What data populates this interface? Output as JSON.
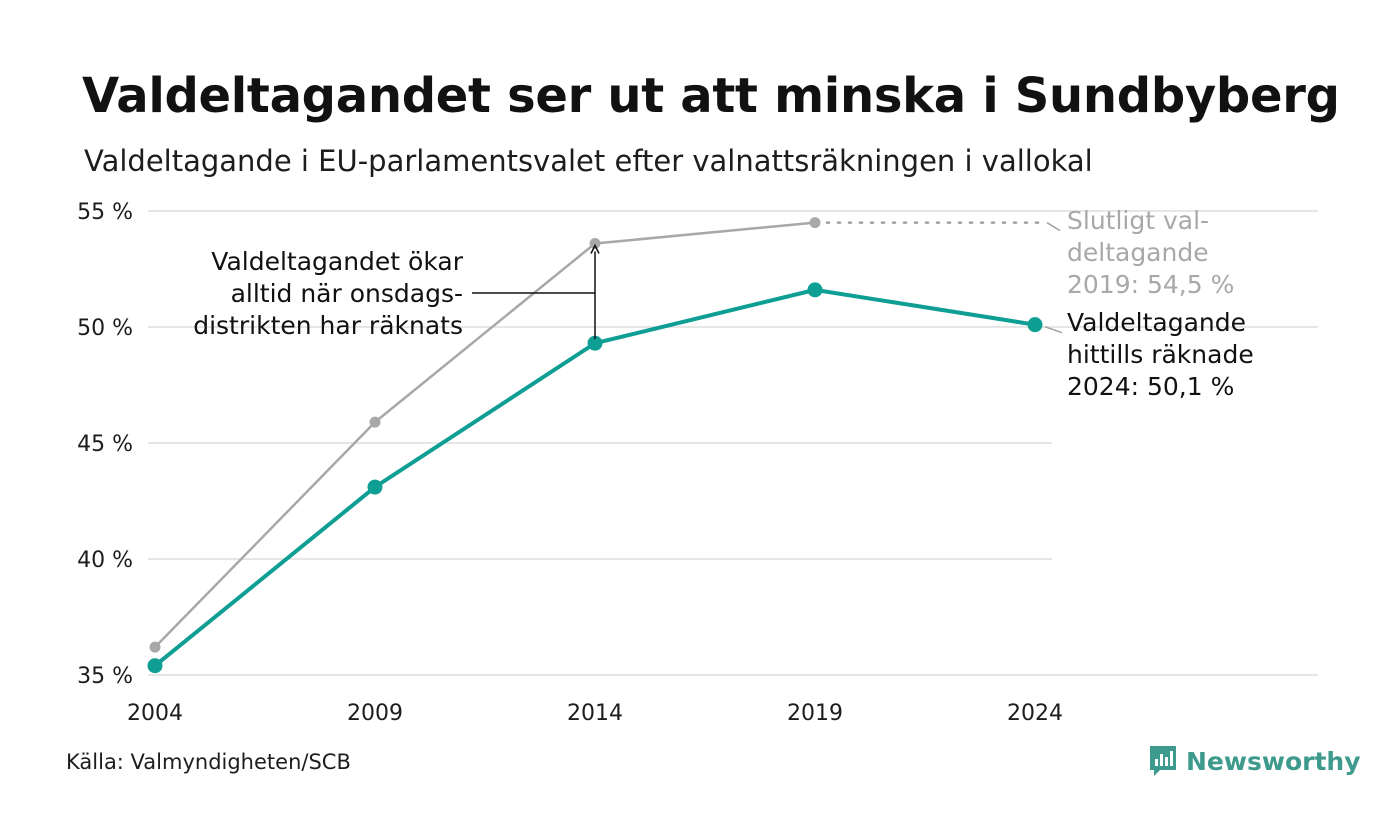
{
  "title": "Valdeltagandet ser ut att minska i Sundbyberg",
  "subtitle": "Valdeltagande i EU-parlamentsvalet efter valnattsräkningen i vallokal",
  "source": "Källa: Valmyndigheten/SCB",
  "brand": "Newsworthy",
  "colors": {
    "teal": "#0e9e94",
    "gray": "#a8a8a8",
    "grid": "#e6e6e6",
    "text": "#1d1d1d"
  },
  "chart_data": {
    "type": "line",
    "x": [
      2004,
      2009,
      2014,
      2019,
      2024
    ],
    "x_tick_labels": [
      "2004",
      "2009",
      "2014",
      "2019",
      "2024"
    ],
    "ylim": [
      35,
      55
    ],
    "y_ticks": [
      35,
      40,
      45,
      50,
      55
    ],
    "y_tick_labels": [
      "35 %",
      "40 %",
      "45 %",
      "50 %",
      "55 %"
    ],
    "grid": true,
    "series": [
      {
        "key": "final",
        "values": [
          36.2,
          45.9,
          53.6,
          54.5,
          null
        ]
      },
      {
        "key": "election-night",
        "values": [
          35.4,
          43.1,
          49.3,
          51.6,
          50.1
        ]
      }
    ],
    "annotations": {
      "final_label": [
        "Slutligt val-",
        "deltagande",
        "2019: 54,5 %"
      ],
      "election_night_label": [
        "Valdeltagande",
        "hittills räknade",
        "2024: 50,1 %"
      ],
      "gap_note": [
        "Valdeltagandet ökar",
        "alltid när onsdags-",
        "distrikten har räknats"
      ]
    }
  }
}
